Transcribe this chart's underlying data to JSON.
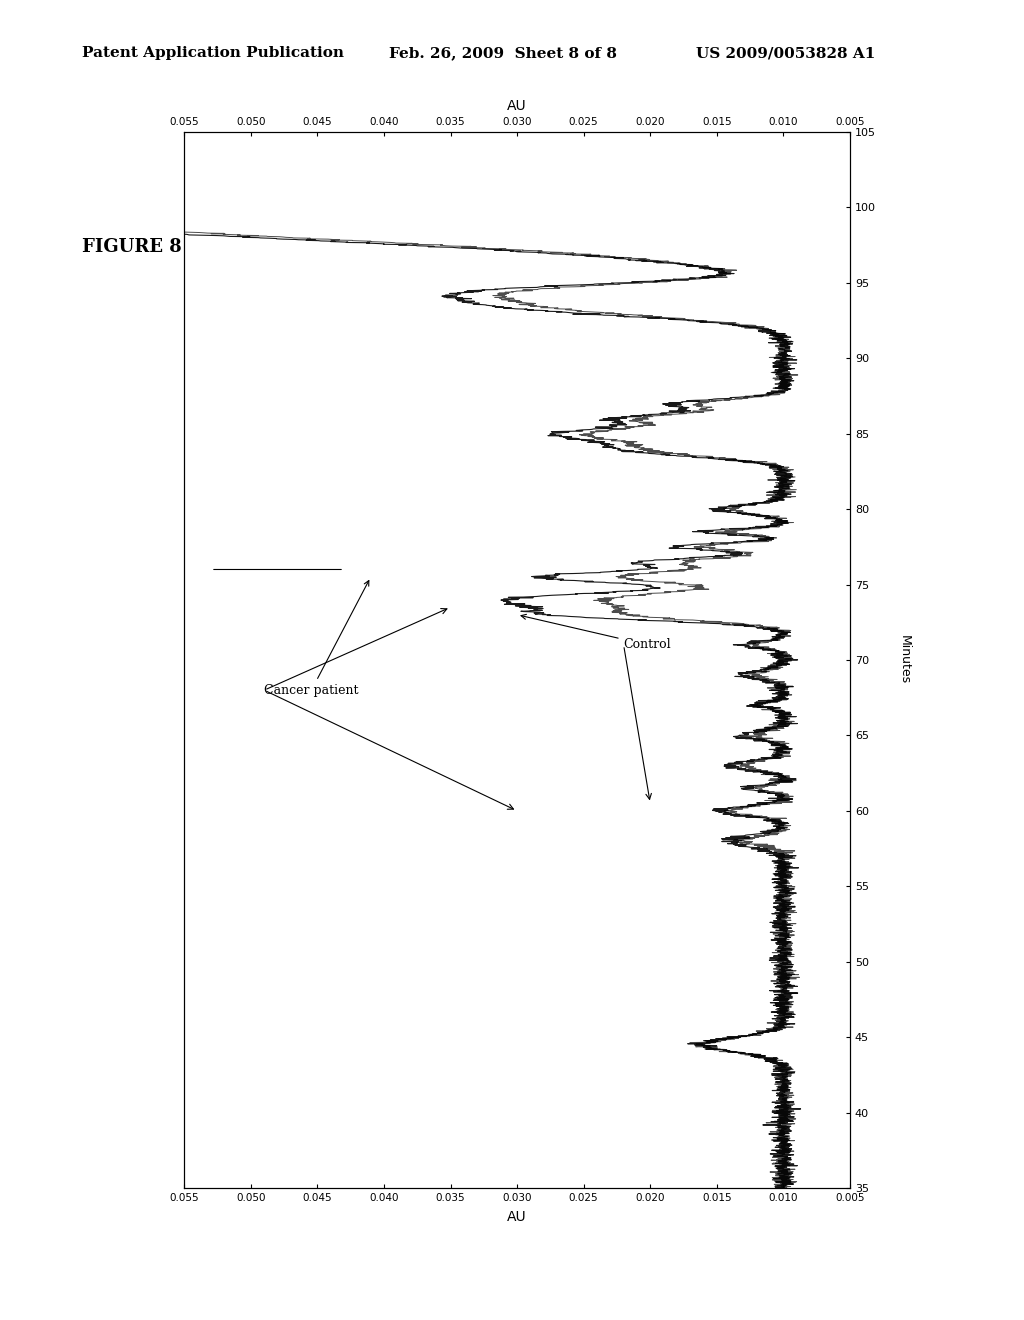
{
  "title": "FIGURE 8",
  "header_left": "Patent Application Publication",
  "header_mid": "Feb. 26, 2009  Sheet 8 of 8",
  "header_right": "US 2009/0053828 A1",
  "xlabel": "AU",
  "ylabel": "Minutes",
  "xmin": 0.005,
  "xmax": 0.055,
  "ymin": 35,
  "ymax": 105,
  "xticks": [
    0.055,
    0.05,
    0.045,
    0.04,
    0.035,
    0.03,
    0.025,
    0.02,
    0.015,
    0.01,
    0.005
  ],
  "yticks": [
    35,
    40,
    45,
    50,
    55,
    60,
    65,
    70,
    75,
    80,
    85,
    90,
    95,
    100,
    105
  ],
  "annotation1": "Cancer patient",
  "annotation2": "Control",
  "background_color": "#ffffff",
  "line_color": "#000000"
}
